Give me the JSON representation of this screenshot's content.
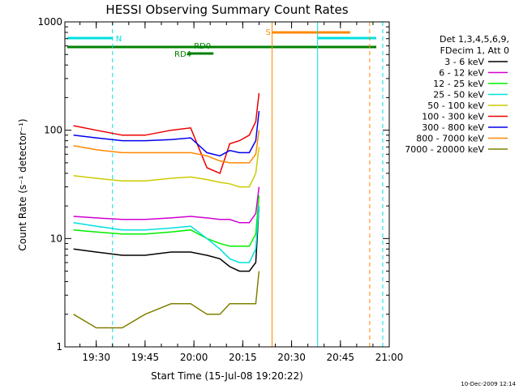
{
  "chart_data": {
    "type": "line",
    "title": "HESSI Observing Summary Count Rates",
    "xlabel": "Start Time (15-Jul-08 19:20:22)",
    "ylabel": "Count Rate (s⁻¹ detector⁻¹)",
    "y_scale": "log",
    "ylim": [
      1,
      1000
    ],
    "xlim": [
      "19:20:22",
      "21:00:00"
    ],
    "y_ticks": [
      "1",
      "10",
      "100",
      "1000"
    ],
    "x_ticks": [
      "19:30",
      "19:45",
      "20:00",
      "20:15",
      "20:30",
      "20:45",
      "21:00"
    ],
    "legend": {
      "placement": "right",
      "header": [
        "Det 1,3,4,5,6,9,",
        "FDecim 1, Att 0"
      ]
    },
    "series": [
      {
        "name": "3 - 6 keV",
        "color": "#000000",
        "x": [
          "19:23",
          "19:30",
          "19:38",
          "19:45",
          "19:53",
          "19:59",
          "20:04",
          "20:08",
          "20:11",
          "20:14",
          "20:17",
          "20:19",
          "20:20"
        ],
        "y": [
          8,
          7.5,
          7,
          7,
          7.5,
          7.5,
          7,
          6.5,
          5.5,
          5,
          5,
          6,
          20
        ]
      },
      {
        "name": "6 - 12 keV",
        "color": "#d000d0",
        "x": [
          "19:23",
          "19:30",
          "19:38",
          "19:45",
          "19:53",
          "19:59",
          "20:04",
          "20:08",
          "20:11",
          "20:14",
          "20:17",
          "20:19",
          "20:20"
        ],
        "y": [
          16,
          15.5,
          15,
          15,
          15.5,
          16,
          15.5,
          15,
          15,
          14,
          14,
          17,
          30
        ]
      },
      {
        "name": "12 - 25 keV",
        "color": "#00ee00",
        "x": [
          "19:23",
          "19:30",
          "19:38",
          "19:45",
          "19:53",
          "19:59",
          "20:04",
          "20:08",
          "20:11",
          "20:14",
          "20:17",
          "20:19",
          "20:20"
        ],
        "y": [
          12,
          11.5,
          11,
          11,
          11.5,
          12,
          10,
          9,
          8.5,
          8.5,
          8.5,
          11,
          25
        ]
      },
      {
        "name": "25 - 50 keV",
        "color": "#00e0e0",
        "x": [
          "19:23",
          "19:30",
          "19:38",
          "19:45",
          "19:53",
          "19:59",
          "20:04",
          "20:08",
          "20:11",
          "20:14",
          "20:17",
          "20:19",
          "20:20"
        ],
        "y": [
          14,
          13,
          12,
          12,
          12.5,
          13,
          10,
          8,
          6.5,
          6,
          6,
          8,
          20
        ]
      },
      {
        "name": "50 - 100 keV",
        "color": "#cccc00",
        "x": [
          "19:23",
          "19:30",
          "19:38",
          "19:45",
          "19:53",
          "19:59",
          "20:04",
          "20:08",
          "20:11",
          "20:14",
          "20:17",
          "20:19",
          "20:20"
        ],
        "y": [
          38,
          36,
          34,
          34,
          36,
          37,
          35,
          33,
          32,
          30,
          30,
          40,
          70
        ]
      },
      {
        "name": "100 - 300 keV",
        "color": "#ee0000",
        "x": [
          "19:23",
          "19:30",
          "19:38",
          "19:45",
          "19:53",
          "19:59",
          "20:04",
          "20:08",
          "20:11",
          "20:14",
          "20:17",
          "20:19",
          "20:20"
        ],
        "y": [
          110,
          100,
          90,
          90,
          100,
          105,
          45,
          40,
          75,
          80,
          90,
          120,
          220
        ]
      },
      {
        "name": "300 - 800 keV",
        "color": "#0000ee",
        "x": [
          "19:23",
          "19:30",
          "19:38",
          "19:45",
          "19:53",
          "19:59",
          "20:04",
          "20:08",
          "20:11",
          "20:14",
          "20:17",
          "20:19",
          "20:20"
        ],
        "y": [
          90,
          85,
          80,
          80,
          82,
          85,
          62,
          58,
          65,
          62,
          62,
          80,
          150
        ]
      },
      {
        "name": "800 - 7000 keV",
        "color": "#ff8800",
        "x": [
          "19:23",
          "19:30",
          "19:38",
          "19:45",
          "19:53",
          "19:59",
          "20:04",
          "20:08",
          "20:11",
          "20:14",
          "20:17",
          "20:19",
          "20:20"
        ],
        "y": [
          72,
          66,
          62,
          62,
          62,
          62,
          58,
          52,
          50,
          50,
          50,
          60,
          100
        ]
      },
      {
        "name": "7000 - 20000 keV",
        "color": "#808000",
        "x": [
          "19:23",
          "19:30",
          "19:38",
          "19:45",
          "19:53",
          "19:59",
          "20:04",
          "20:08",
          "20:11",
          "20:14",
          "20:17",
          "20:19",
          "20:20"
        ],
        "y": [
          2,
          1.5,
          1.5,
          2,
          2.5,
          2.5,
          2,
          2,
          2.5,
          2.5,
          2.5,
          2.5,
          5
        ]
      }
    ],
    "annotations": [
      {
        "text": "N",
        "color": "#00e0e0"
      },
      {
        "text": "RD0",
        "color": "#008000"
      },
      {
        "text": "RD4",
        "color": "#008000"
      },
      {
        "text": "S",
        "color": "#ff8800"
      }
    ],
    "footer_stamp": "10-Dec-2009 12:14"
  }
}
